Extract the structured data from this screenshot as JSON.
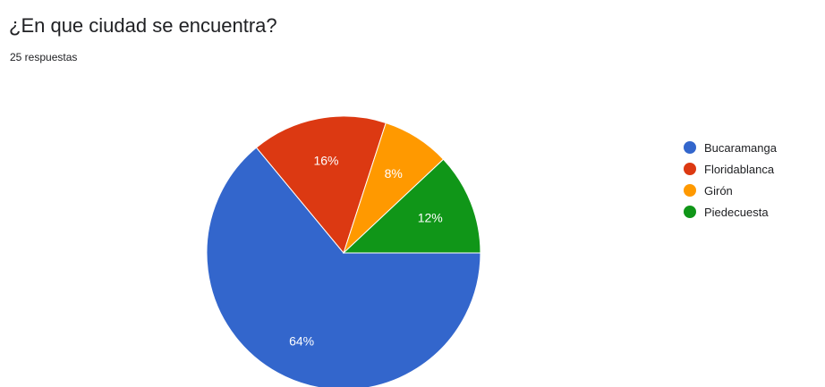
{
  "question": {
    "title": "¿En que ciudad se encuentra?",
    "responses": "25 respuestas"
  },
  "chart_data": {
    "type": "pie",
    "categories": [
      "Bucaramanga",
      "Floridablanca",
      "Girón",
      "Piedecuesta"
    ],
    "values": [
      64,
      16,
      8,
      12
    ],
    "labels": [
      "64%",
      "16%",
      "8%",
      "12%"
    ],
    "colors": [
      "#3366cc",
      "#dc3912",
      "#ff9900",
      "#109618"
    ],
    "legend_position": "right"
  }
}
